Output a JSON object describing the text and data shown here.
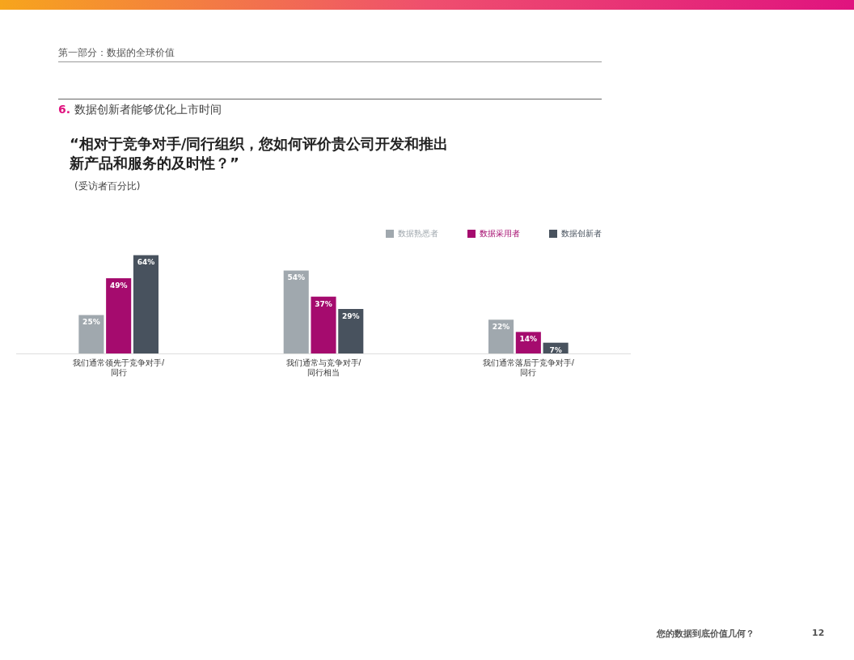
{
  "chart_data": {
    "type": "bar",
    "title": "“相对于竞争对手/同行组织，您如何评价贵公司开发和推出新产品和服务的及时性？”",
    "subtitle": "(受访者百分比)",
    "annotations": [
      "第一部分：数据的全球价值",
      "6. 数据创新者能够优化上市时间",
      "您的数据到底价值几何？",
      "12"
    ],
    "categories": [
      "我们通常领先于竞争对手/同行",
      "我们通常与竞争对手/同行相当",
      "我们通常落后于竞争对手/同行"
    ],
    "series": [
      {
        "name": "数据熟悉者",
        "color": "#a0a8ae",
        "values": [
          25,
          54,
          22
        ],
        "value_labels": [
          "25%",
          "54%",
          "22%"
        ]
      },
      {
        "name": "数据采用者",
        "color": "#a50b6e",
        "values": [
          49,
          37,
          14
        ],
        "value_labels": [
          "49%",
          "37%",
          "14%"
        ]
      },
      {
        "name": "数据创新者",
        "color": "#48525e",
        "values": [
          64,
          29,
          7
        ],
        "value_labels": [
          "64%",
          "29%",
          "7%"
        ]
      }
    ],
    "legend": "top right",
    "grid": false
  }
}
